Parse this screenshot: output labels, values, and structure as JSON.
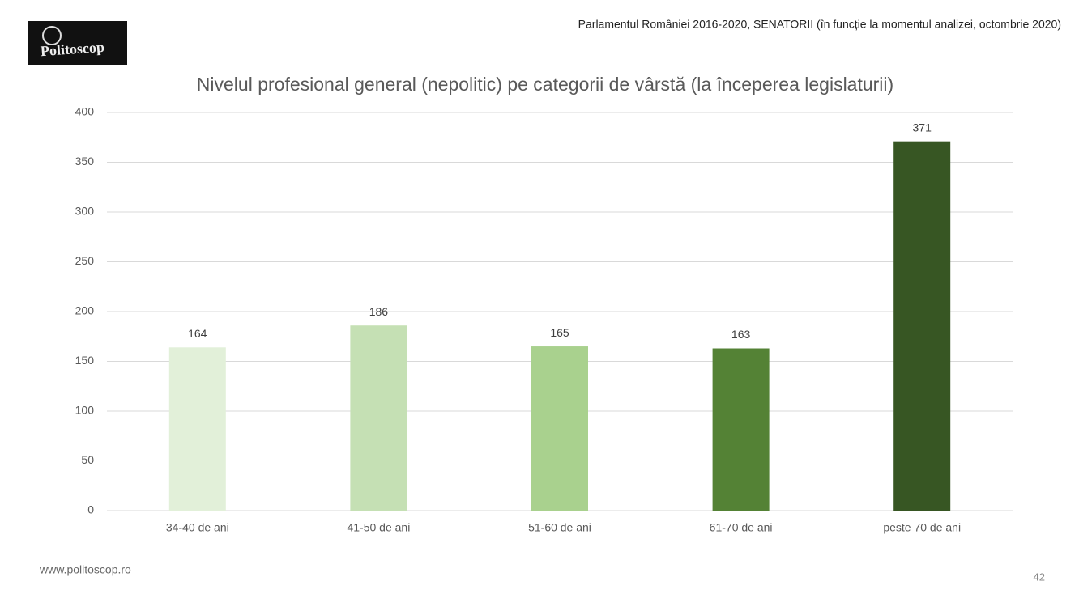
{
  "header": {
    "logo": "Politoscop",
    "source": "Parlamentul României 2016-2020, SENATORII (în funcție la momentul analizei, octombrie 2020)"
  },
  "footer": {
    "site": "www.politoscop.ro",
    "page": "42"
  },
  "chart_data": {
    "type": "bar",
    "title": "Nivelul profesional general (nepolitic) pe categorii de vârstă (la începerea legislaturii)",
    "categories": [
      "34-40 de ani",
      "41-50 de ani",
      "51-60 de ani",
      "61-70 de ani",
      "peste 70 de ani"
    ],
    "values": [
      164,
      186,
      165,
      163,
      371
    ],
    "colors": [
      "#e2f0d9",
      "#c5e0b4",
      "#a9d18e",
      "#548235",
      "#375623"
    ],
    "ylim": [
      0,
      400
    ],
    "yticks": [
      0,
      50,
      100,
      150,
      200,
      250,
      300,
      350,
      400
    ],
    "grid": true
  }
}
